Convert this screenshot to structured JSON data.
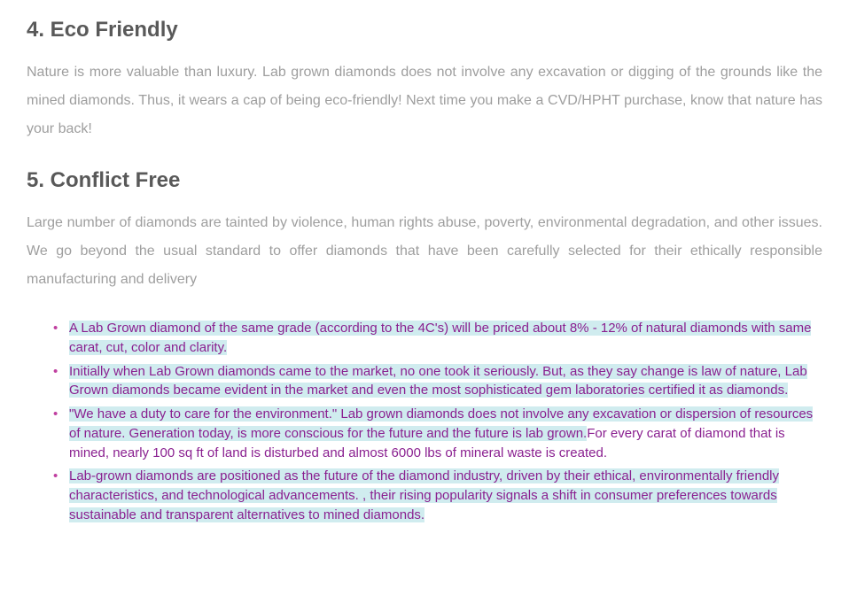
{
  "section4": {
    "heading": "4. Eco Friendly",
    "paragraph": "Nature is more valuable than luxury. Lab grown diamonds does not involve any excavation or digging of the grounds like the mined diamonds. Thus, it wears a cap of being eco-friendly! Next time you make a CVD/HPHT purchase, know that nature has your back!"
  },
  "section5": {
    "heading": "5. Conflict Free",
    "paragraph": "Large number of diamonds are tainted by violence, human rights abuse, poverty, environmental degradation, and other issues. We go beyond the usual standard to offer diamonds that have been carefully selected for their ethically responsible manufacturing and delivery"
  },
  "bullets": {
    "b1": "A Lab Grown diamond of the same grade (according to the 4C's) will be priced about 8% - 12% of natural diamonds with same carat, cut, color and clarity.",
    "b2": "Initially when Lab Grown diamonds came to the market, no one took it seriously. But, as they say change is law of nature, Lab Grown diamonds became evident in the market and even the most sophisticated gem laboratories certified it as diamonds.",
    "b3a": "\"We have a duty to care for the environment.\" Lab grown diamonds does not involve any excavation or dispersion of resources of nature. Generation today, is more conscious for the future and the future is lab grown.",
    "b3b": "For every carat of diamond that is mined, nearly 100 sq ft of land is disturbed and almost 6000 lbs of mineral waste is created.",
    "b4": "Lab-grown diamonds are positioned as the future of the diamond industry, driven by their ethical, environmentally friendly characteristics, and technological advancements. , their rising popularity signals a shift in consumer preferences towards sustainable and transparent alternatives to mined diamonds."
  },
  "colors": {
    "heading": "#595959",
    "paragraph": "#9e9e9e",
    "bullet_marker": "#c040a0",
    "highlight_bg": "#d0ecef",
    "highlight_text": "#8a2090"
  }
}
